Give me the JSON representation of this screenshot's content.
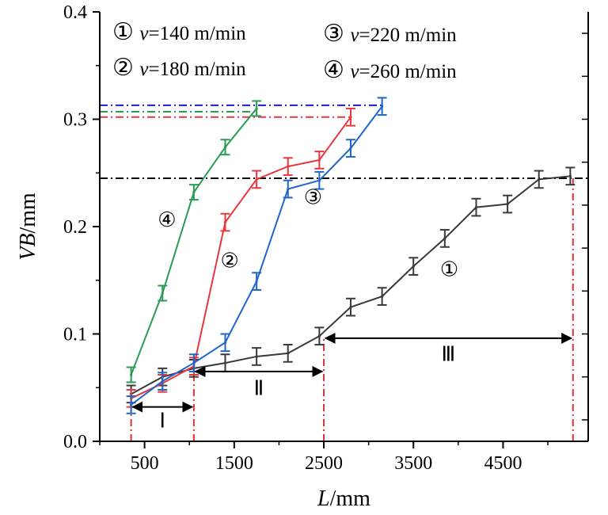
{
  "chart_data": {
    "type": "line",
    "xlabel": {
      "var": "L",
      "unit": "/mm"
    },
    "ylabel": {
      "var": "VB",
      "unit": "/mm"
    },
    "xlim": [
      0,
      5450
    ],
    "ylim": [
      0,
      0.4
    ],
    "xticks": [
      "500",
      "1500",
      "2500",
      "3500",
      "4500"
    ],
    "xtick_values": [
      500,
      1500,
      2500,
      3500,
      4500
    ],
    "yticks": [
      "0.0",
      "0.1",
      "0.2",
      "0.3",
      "0.4"
    ],
    "ytick_values": [
      0,
      0.1,
      0.2,
      0.3,
      0.4
    ],
    "legend": [
      {
        "num": "①",
        "var": "v",
        "text": "=140 m/min"
      },
      {
        "num": "②",
        "var": "v",
        "text": "=180 m/min"
      },
      {
        "num": "③",
        "var": "v",
        "text": "=220 m/min"
      },
      {
        "num": "④",
        "var": "v",
        "text": "=260 m/min"
      }
    ],
    "series": [
      {
        "label": "①",
        "color": "#3a3a3a",
        "x": [
          350,
          700,
          1050,
          1400,
          1750,
          2100,
          2450,
          2800,
          3150,
          3500,
          3850,
          4200,
          4550,
          4900,
          5250
        ],
        "y": [
          0.044,
          0.06,
          0.068,
          0.073,
          0.079,
          0.082,
          0.098,
          0.125,
          0.135,
          0.163,
          0.189,
          0.218,
          0.221,
          0.244,
          0.247
        ],
        "err": 0.008
      },
      {
        "label": "②",
        "color": "#e8383d",
        "x": [
          350,
          700,
          1050,
          1400,
          1750,
          2100,
          2450,
          2800
        ],
        "y": [
          0.04,
          0.054,
          0.07,
          0.204,
          0.244,
          0.256,
          0.262,
          0.302
        ],
        "err": 0.008
      },
      {
        "label": "③",
        "color": "#1f66c9",
        "x": [
          350,
          700,
          1050,
          1400,
          1750,
          2100,
          2450,
          2800,
          3150
        ],
        "y": [
          0.034,
          0.056,
          0.073,
          0.092,
          0.149,
          0.235,
          0.243,
          0.273,
          0.312
        ],
        "err": 0.008
      },
      {
        "label": "④",
        "color": "#2a9a55",
        "x": [
          350,
          700,
          1050,
          1400,
          1750
        ],
        "y": [
          0.062,
          0.138,
          0.232,
          0.274,
          0.31
        ],
        "err": 0.007
      }
    ],
    "threshold_lines": [
      {
        "y": 0.313,
        "color": "#1a1ad6",
        "x_end": 3150
      },
      {
        "y": 0.307,
        "color": "#2a9a55",
        "x_end": 1750
      },
      {
        "y": 0.302,
        "color": "#e8383d",
        "x_end": 2800
      },
      {
        "y": 0.245,
        "color": "#000000",
        "x_end": 5450
      }
    ],
    "vlines": [
      {
        "x": 350,
        "color": "#e03030"
      },
      {
        "x": 1050,
        "color": "#e03030"
      },
      {
        "x": 2500,
        "color": "#e03030"
      },
      {
        "x": 5280,
        "color": "#e03030"
      }
    ],
    "regions": [
      {
        "label": "Ⅰ",
        "x0": 350,
        "x1": 1050,
        "y": 0.032,
        "label_y": 0.013
      },
      {
        "label": "Ⅱ",
        "x0": 1050,
        "x1": 2500,
        "y": 0.065,
        "label_y": 0.043
      },
      {
        "label": "Ⅲ",
        "x0": 2500,
        "x1": 5280,
        "y": 0.096,
        "label_y": 0.075
      }
    ],
    "curve_labels": [
      {
        "text": "④",
        "x": 750,
        "y": 0.2
      },
      {
        "text": "②",
        "x": 1450,
        "y": 0.162
      },
      {
        "text": "③",
        "x": 2380,
        "y": 0.221
      },
      {
        "text": "①",
        "x": 3900,
        "y": 0.154
      }
    ],
    "grid": false
  }
}
